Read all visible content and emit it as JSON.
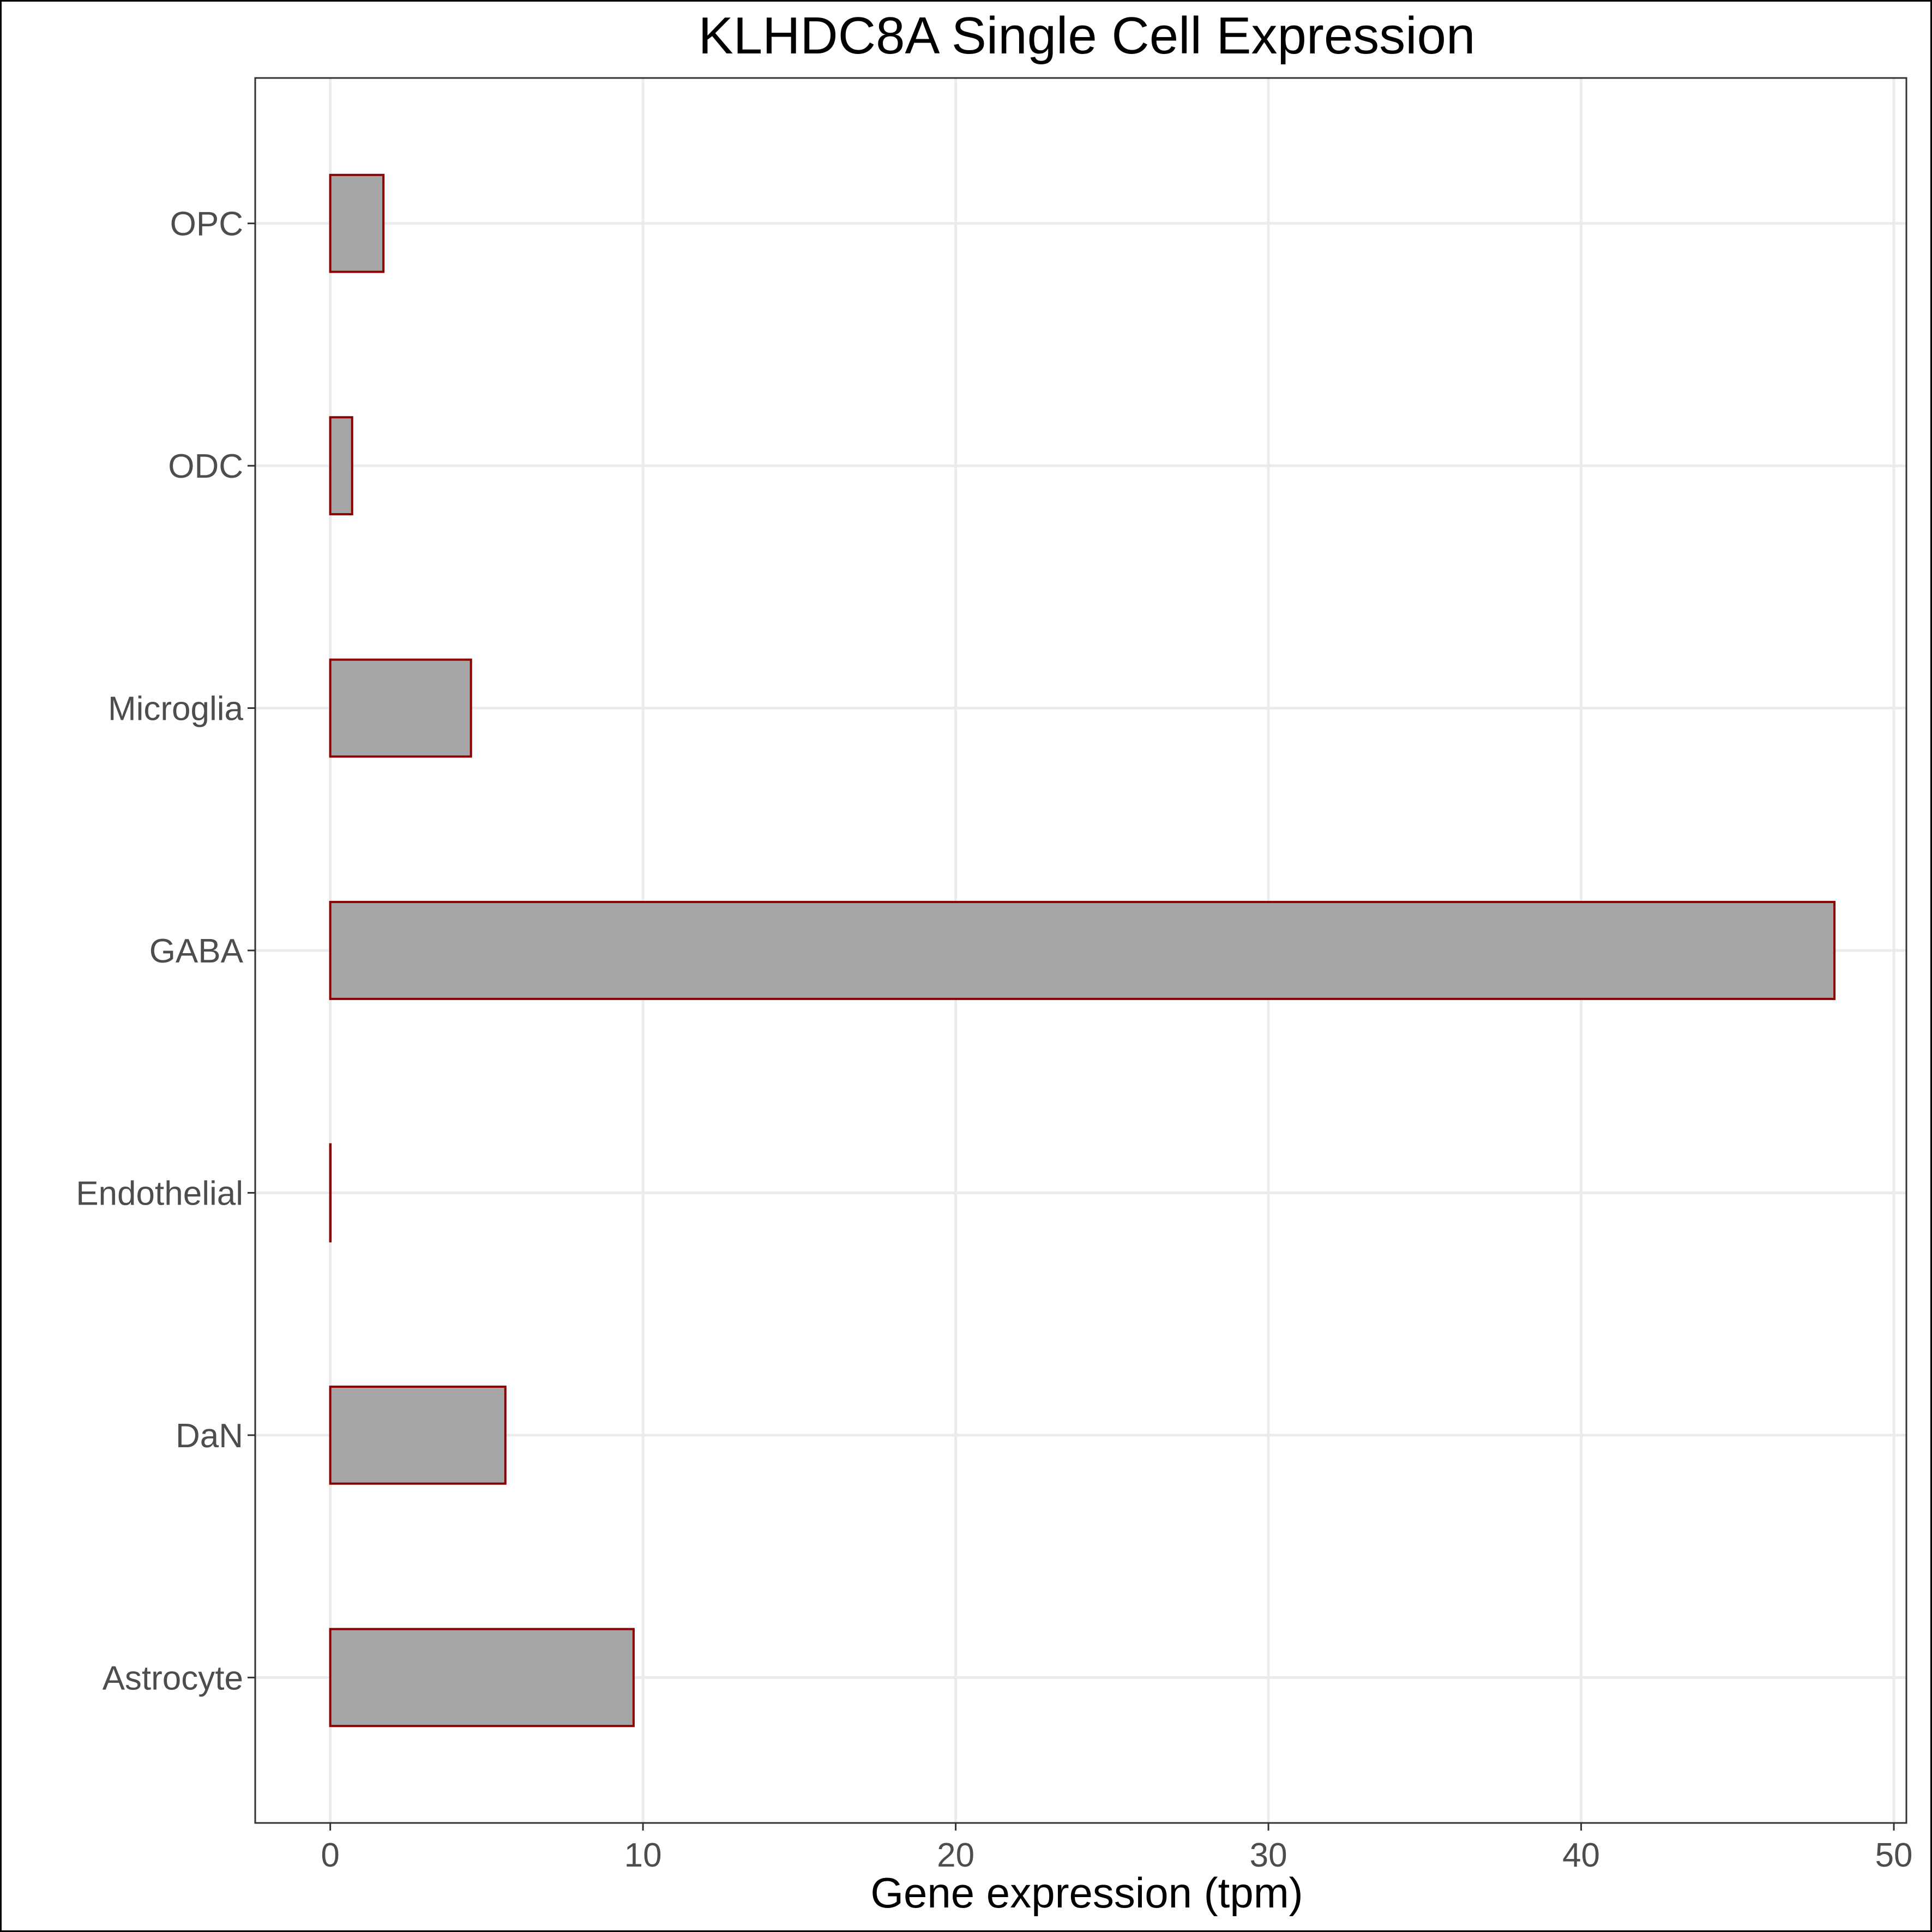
{
  "chart_data": {
    "type": "bar",
    "orientation": "horizontal",
    "title": "KLHDC8A Single Cell Expression",
    "xlabel": "Gene expression (tpm)",
    "ylabel": "",
    "categories": [
      "Astrocyte",
      "DaN",
      "Endothelial",
      "GABA",
      "Microglia",
      "ODC",
      "OPC"
    ],
    "values": [
      9.7,
      5.6,
      0.0,
      48.1,
      4.5,
      0.7,
      1.7
    ],
    "xlim": [
      -2.4,
      50.4
    ],
    "xticks": [
      0,
      10,
      20,
      30,
      40,
      50
    ],
    "grid": true,
    "legend": "none",
    "colors": {
      "bar_fill": "#a6a6a6",
      "bar_stroke": "#8b0000",
      "grid": "#ebebeb"
    }
  }
}
